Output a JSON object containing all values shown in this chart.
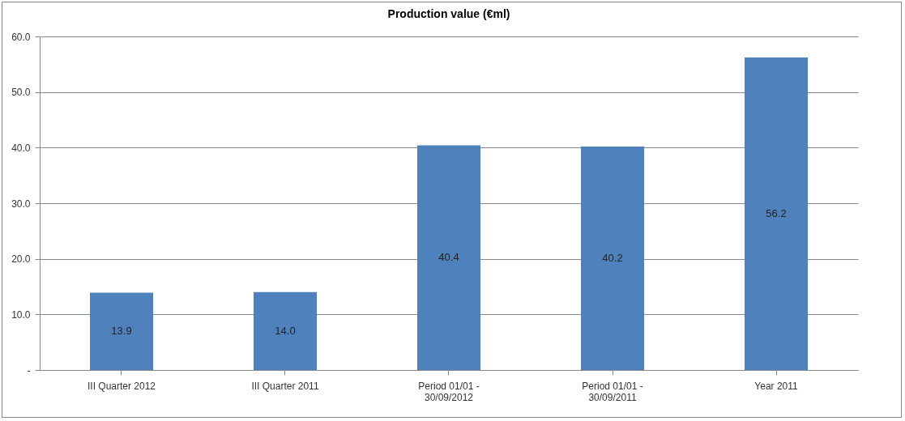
{
  "chart_data": {
    "type": "bar",
    "title": "Production value (€ml)",
    "categories": [
      "III Quarter 2012",
      "III Quarter 2011",
      "Period 01/01 -\n30/09/2012",
      "Period 01/01 -\n30/09/2011",
      "Year 2011"
    ],
    "values": [
      13.9,
      14.0,
      40.4,
      40.2,
      56.2
    ],
    "value_labels": [
      "13.9",
      "14.0",
      "40.4",
      "40.2",
      "56.2"
    ],
    "color": "#4f81bd",
    "ylim": [
      0,
      60
    ],
    "yticks": [
      {
        "value": 0,
        "label": "-"
      },
      {
        "value": 10,
        "label": "10.0"
      },
      {
        "value": 20,
        "label": "20.0"
      },
      {
        "value": 30,
        "label": "30.0"
      },
      {
        "value": 40,
        "label": "40.0"
      },
      {
        "value": 50,
        "label": "50.0"
      },
      {
        "value": 60,
        "label": "60.0"
      }
    ],
    "grid": "y"
  }
}
